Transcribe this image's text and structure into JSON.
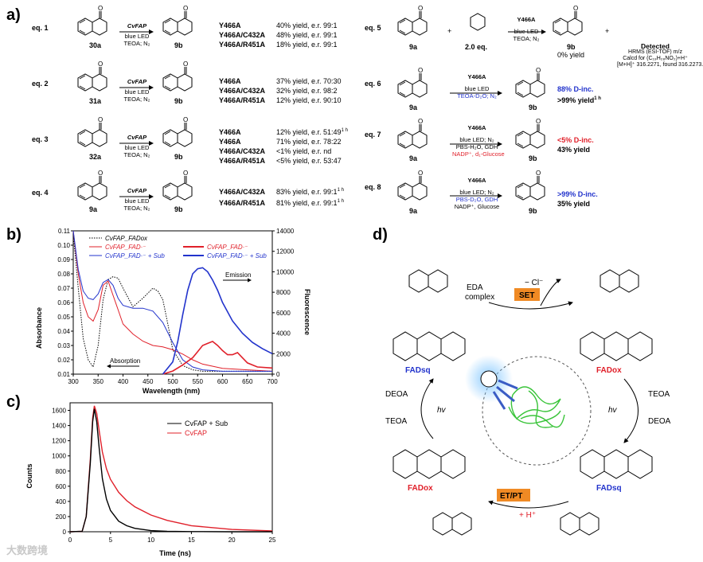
{
  "panels": {
    "a": "a)",
    "b": "b)",
    "c": "c)",
    "d": "d)"
  },
  "eqs": [
    {
      "id": "eq. 1",
      "sub": "30a",
      "prod": "9b",
      "cat": "CvFAP",
      "cond": [
        "blue LED",
        "TEOA; N₂"
      ],
      "rows": [
        [
          "Y466A",
          "40% yield, e.r. 99:1"
        ],
        [
          "Y466A/C432A",
          "48% yield, e.r. 99:1"
        ],
        [
          "Y466A/R451A",
          "18% yield, e.r. 99:1"
        ]
      ]
    },
    {
      "id": "eq. 2",
      "sub": "31a",
      "prod": "9b",
      "cat": "CvFAP",
      "cond": [
        "blue LED",
        "TEOA; N₂"
      ],
      "rows": [
        [
          "Y466A",
          "37% yield, e.r. 70:30"
        ],
        [
          "Y466A/C432A",
          "32% yield, e.r. 98:2"
        ],
        [
          "Y466A/R451A",
          "12% yield, e.r. 90:10"
        ]
      ]
    },
    {
      "id": "eq. 3",
      "sub": "32a",
      "prod": "9b",
      "cat": "CvFAP",
      "cond": [
        "blue LED",
        "TEOA; N₂"
      ],
      "rows": [
        [
          "Y466A",
          "12% yield, e.r. 51:49",
          "1 h"
        ],
        [
          "Y466A",
          "71% yield, e.r. 78:22"
        ],
        [
          "Y466A/C432A",
          "<1% yield, e.r. nd"
        ],
        [
          "Y466A/R451A",
          "<5% yield, e.r. 53:47"
        ]
      ]
    },
    {
      "id": "eq. 4",
      "sub": "9a",
      "prod": "9b",
      "cat": "CvFAP",
      "cond": [
        "blue LED",
        "TEOA; N₂"
      ],
      "rows": [
        [
          "Y466A/C432A",
          "83% yield, e.r. 99:1",
          "1 h"
        ],
        [
          "Y466A/R451A",
          "81% yield, e.r. 99:1",
          "1 h"
        ]
      ]
    }
  ],
  "eqs_right": [
    {
      "id": "eq. 5",
      "sub": "9a",
      "reagent": "2.0 eq.",
      "cat": "Y466A",
      "cond": [
        "blue LED",
        "TEOA; N₂"
      ],
      "prod": "9b",
      "prod_yield": "0% yield",
      "detected": [
        "Detected",
        "HRMS (ESI-TOF) m/z",
        "Calcd for (C₁₉H₂₈NO₂)+H⁺",
        "[M+H]⁺ 316.2271, found 316.2273."
      ]
    },
    {
      "id": "eq. 6",
      "sub": "9a",
      "cat": "Y466A",
      "cond": [
        "blue LED",
        "TEOA-D₂O; N₂"
      ],
      "prod": "9b",
      "res1": "88% D-inc.",
      "res2": ">99% yield",
      "res2_sup": "1 h"
    },
    {
      "id": "eq. 7",
      "sub": "9a",
      "cat": "Y466A",
      "cond": [
        "blue LED; N₂",
        "PBS-H₂O, GDH",
        "NADP⁺, d₁-Glucose"
      ],
      "prod": "9b",
      "res1": "<5% D-inc.",
      "res2": "43% yield"
    },
    {
      "id": "eq. 8",
      "sub": "9a",
      "cat": "Y466A",
      "cond": [
        "blue LED; N₂",
        "PBS-D₂O, GDH",
        "NADP⁺, Glucose"
      ],
      "prod": "9b",
      "res1": ">99% D-inc.",
      "res2": "35% yield"
    }
  ],
  "chart_data": [
    {
      "type": "line",
      "panel": "b",
      "xlabel": "Wavelength (nm)",
      "ylabel": "Absorbance",
      "y2label": "Fluorescence",
      "xlim": [
        300,
        700
      ],
      "ylim": [
        0.01,
        0.11
      ],
      "y2lim": [
        0,
        14000
      ],
      "xticks": [
        300,
        350,
        400,
        450,
        500,
        550,
        600,
        650,
        700
      ],
      "yticks": [
        0.01,
        0.02,
        0.03,
        0.04,
        0.05,
        0.06,
        0.07,
        0.08,
        0.09,
        0.1,
        0.11
      ],
      "y2ticks": [
        0,
        2000,
        4000,
        6000,
        8000,
        10000,
        12000,
        14000
      ],
      "legend_left": [
        "CvFAP_FADox",
        "CvFAP_FAD·⁻",
        "CvFAP_FAD·⁻ + Sub"
      ],
      "legend_right": [
        "CvFAP_FAD·⁻",
        "CvFAP_FAD·⁻ + Sub"
      ],
      "annotations": [
        "Emission",
        "Absorption"
      ],
      "series": [
        {
          "name": "CvFAP_FADox (abs)",
          "color": "#000000",
          "style": "dotted",
          "axis": "left",
          "x": [
            300,
            310,
            320,
            330,
            340,
            350,
            360,
            370,
            380,
            390,
            400,
            420,
            440,
            460,
            470,
            480,
            490,
            500,
            520,
            540,
            560,
            600,
            650,
            700
          ],
          "y": [
            0.108,
            0.07,
            0.035,
            0.02,
            0.015,
            0.03,
            0.062,
            0.076,
            0.078,
            0.077,
            0.07,
            0.057,
            0.063,
            0.07,
            0.068,
            0.062,
            0.045,
            0.027,
            0.016,
            0.013,
            0.012,
            0.012,
            0.012,
            0.012
          ]
        },
        {
          "name": "CvFAP_FAD·⁻ (abs)",
          "color": "#e0202a",
          "style": "solid",
          "axis": "left",
          "x": [
            300,
            310,
            320,
            330,
            340,
            350,
            360,
            370,
            380,
            390,
            400,
            420,
            440,
            460,
            480,
            500,
            520,
            540,
            560,
            600,
            650,
            700
          ],
          "y": [
            0.11,
            0.08,
            0.06,
            0.05,
            0.047,
            0.055,
            0.072,
            0.075,
            0.065,
            0.055,
            0.045,
            0.038,
            0.033,
            0.03,
            0.029,
            0.027,
            0.024,
            0.02,
            0.017,
            0.014,
            0.013,
            0.012
          ]
        },
        {
          "name": "CvFAP_FAD·⁻ + Sub (abs)",
          "color": "#2233cc",
          "style": "solid",
          "axis": "left",
          "x": [
            300,
            310,
            320,
            330,
            340,
            350,
            360,
            370,
            380,
            390,
            400,
            420,
            440,
            460,
            480,
            500,
            520,
            540,
            560,
            600,
            650,
            700
          ],
          "y": [
            0.11,
            0.083,
            0.068,
            0.063,
            0.062,
            0.066,
            0.074,
            0.076,
            0.072,
            0.063,
            0.058,
            0.056,
            0.056,
            0.054,
            0.046,
            0.032,
            0.02,
            0.015,
            0.013,
            0.012,
            0.012,
            0.012
          ]
        },
        {
          "name": "CvFAP_FAD·⁻ (em)",
          "color": "#e0202a",
          "style": "solid",
          "axis": "right",
          "x": [
            480,
            500,
            520,
            540,
            550,
            560,
            570,
            580,
            590,
            600,
            610,
            620,
            630,
            640,
            650,
            670,
            700
          ],
          "y": [
            0,
            300,
            900,
            1600,
            2200,
            2800,
            3000,
            3200,
            2800,
            2300,
            1900,
            1900,
            2100,
            1600,
            1100,
            700,
            600
          ]
        },
        {
          "name": "CvFAP_FAD·⁻ + Sub (em)",
          "color": "#2233cc",
          "style": "solid",
          "axis": "right",
          "x": [
            480,
            500,
            510,
            520,
            530,
            540,
            550,
            560,
            570,
            580,
            590,
            600,
            620,
            640,
            660,
            680,
            700
          ],
          "y": [
            0,
            1200,
            3200,
            5800,
            8200,
            9800,
            10300,
            10400,
            10000,
            9200,
            8200,
            7000,
            5200,
            4000,
            3100,
            2500,
            2000
          ]
        }
      ]
    },
    {
      "type": "line",
      "panel": "c",
      "xlabel": "Time (ns)",
      "ylabel": "Counts",
      "xlim": [
        0,
        25
      ],
      "ylim": [
        0,
        1700
      ],
      "xticks": [
        0,
        5,
        10,
        15,
        20,
        25
      ],
      "yticks": [
        0,
        200,
        400,
        600,
        800,
        1000,
        1200,
        1400,
        1600
      ],
      "legend": [
        "CvFAP + Sub",
        "CvFAP"
      ],
      "series": [
        {
          "name": "CvFAP + Sub",
          "color": "#000000",
          "x": [
            0,
            1.5,
            2,
            2.5,
            2.8,
            3,
            3.3,
            3.6,
            4,
            4.5,
            5,
            6,
            7,
            8,
            10,
            12,
            15,
            20,
            25
          ],
          "y": [
            0,
            5,
            200,
            900,
            1450,
            1620,
            1450,
            1100,
            700,
            430,
            280,
            140,
            80,
            45,
            15,
            5,
            2,
            0,
            0
          ]
        },
        {
          "name": "CvFAP",
          "color": "#e0202a",
          "x": [
            0,
            1.5,
            2,
            2.5,
            2.8,
            3,
            3.3,
            3.6,
            4,
            4.5,
            5,
            6,
            7,
            8,
            10,
            12,
            15,
            20,
            25
          ],
          "y": [
            0,
            5,
            200,
            950,
            1500,
            1660,
            1560,
            1330,
            1050,
            830,
            690,
            520,
            410,
            330,
            220,
            150,
            80,
            30,
            10
          ]
        }
      ]
    }
  ],
  "scheme_d": {
    "title_labels": [
      "EDA",
      "complex"
    ],
    "set": "SET",
    "etpt": "ET/PT",
    "cl": "− Cl⁻",
    "hplus": "+ H⁺",
    "hv1": "hv",
    "hv2": "hv",
    "teoa1": "TEOA",
    "deoa1": "DEOA",
    "teoa2": "TEOA",
    "deoa2": "DEOA",
    "fad_sq1": "FADsq",
    "fad_ox1": "FADox",
    "fad_sq2": "FADsq",
    "fad_ox2": "FADox",
    "set_color": "#f08a24"
  },
  "watermark": "大数跨境"
}
